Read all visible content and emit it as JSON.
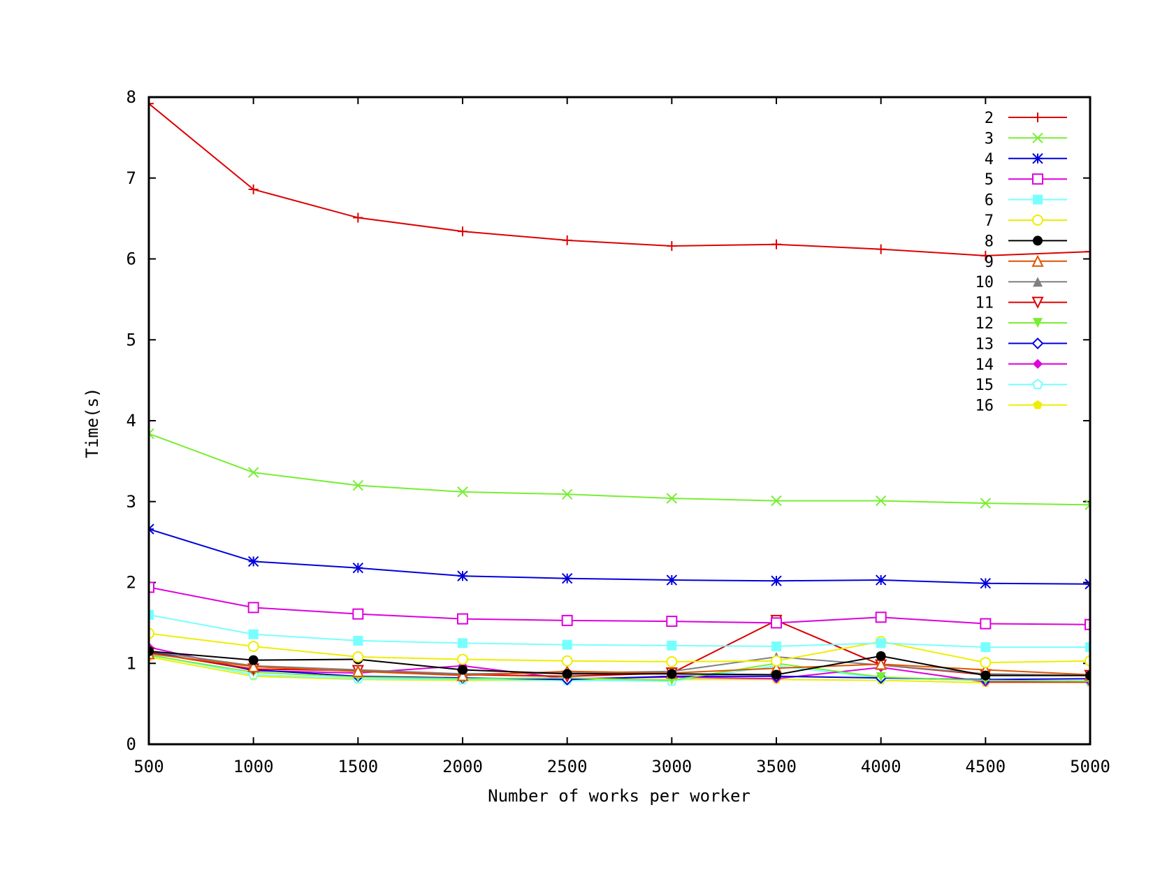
{
  "chart_data": {
    "type": "line",
    "title": "",
    "xlabel": "Number of works per worker",
    "ylabel": "Time(s)",
    "xlim": [
      500,
      5000
    ],
    "ylim": [
      0,
      8
    ],
    "xticks": [
      500,
      1000,
      1500,
      2000,
      2500,
      3000,
      3500,
      4000,
      4500,
      5000
    ],
    "yticks": [
      0,
      1,
      2,
      3,
      4,
      5,
      6,
      7,
      8
    ],
    "grid": false,
    "legend_position": "top-right",
    "x": [
      500,
      1000,
      1500,
      2000,
      2500,
      3000,
      3500,
      4000,
      4500,
      5000
    ],
    "series": [
      {
        "name": "2",
        "color": "#dd0000",
        "marker": "plus",
        "values": [
          7.92,
          6.86,
          6.51,
          6.34,
          6.23,
          6.16,
          6.18,
          6.12,
          6.04,
          6.09
        ]
      },
      {
        "name": "3",
        "color": "#77ee33",
        "marker": "cross",
        "values": [
          3.84,
          3.36,
          3.2,
          3.12,
          3.09,
          3.04,
          3.01,
          3.01,
          2.98,
          2.96
        ]
      },
      {
        "name": "4",
        "color": "#0000dd",
        "marker": "star",
        "values": [
          2.66,
          2.26,
          2.18,
          2.08,
          2.05,
          2.03,
          2.02,
          2.03,
          1.99,
          1.98
        ]
      },
      {
        "name": "5",
        "color": "#dd00dd",
        "marker": "square-open",
        "values": [
          1.94,
          1.69,
          1.61,
          1.55,
          1.53,
          1.52,
          1.5,
          1.57,
          1.49,
          1.48
        ]
      },
      {
        "name": "6",
        "color": "#77ffff",
        "marker": "square-filled",
        "values": [
          1.6,
          1.36,
          1.28,
          1.25,
          1.23,
          1.22,
          1.21,
          1.25,
          1.2,
          1.2
        ]
      },
      {
        "name": "7",
        "color": "#eeee00",
        "marker": "circle-open",
        "values": [
          1.37,
          1.21,
          1.08,
          1.05,
          1.03,
          1.02,
          1.03,
          1.27,
          1.01,
          1.03
        ]
      },
      {
        "name": "8",
        "color": "#000000",
        "marker": "circle-filled",
        "values": [
          1.15,
          1.04,
          1.05,
          0.92,
          0.87,
          0.87,
          0.86,
          1.09,
          0.85,
          0.85
        ]
      },
      {
        "name": "9",
        "color": "#dd5500",
        "marker": "triangle-open",
        "values": [
          1.12,
          0.96,
          0.9,
          0.85,
          0.9,
          0.88,
          0.94,
          0.99,
          0.92,
          0.86
        ]
      },
      {
        "name": "10",
        "color": "#808080",
        "marker": "triangle-filled",
        "values": [
          1.15,
          0.97,
          0.92,
          0.87,
          0.88,
          0.9,
          1.08,
          0.98,
          0.87,
          0.85
        ]
      },
      {
        "name": "11",
        "color": "#dd0000",
        "marker": "triangle-down-open",
        "values": [
          1.13,
          0.93,
          0.91,
          0.86,
          0.84,
          0.88,
          1.53,
          0.98,
          0.86,
          0.85
        ]
      },
      {
        "name": "12",
        "color": "#77ee33",
        "marker": "triangle-down-filled",
        "values": [
          1.1,
          0.89,
          0.83,
          0.81,
          0.82,
          0.79,
          1.0,
          0.83,
          0.79,
          0.78
        ]
      },
      {
        "name": "13",
        "color": "#0000dd",
        "marker": "diamond-open",
        "values": [
          1.14,
          0.92,
          0.84,
          0.82,
          0.8,
          0.84,
          0.84,
          0.82,
          0.8,
          0.81
        ]
      },
      {
        "name": "14",
        "color": "#dd00dd",
        "marker": "diamond-filled",
        "values": [
          1.2,
          0.91,
          0.88,
          0.97,
          0.81,
          0.83,
          0.81,
          0.95,
          0.77,
          0.77
        ]
      },
      {
        "name": "15",
        "color": "#77ffff",
        "marker": "pentagon-open",
        "values": [
          1.11,
          0.86,
          0.81,
          0.8,
          0.79,
          0.78,
          0.97,
          0.82,
          0.79,
          0.78
        ]
      },
      {
        "name": "16",
        "color": "#eeee00",
        "marker": "pentagon-filled",
        "values": [
          1.08,
          0.84,
          0.8,
          0.79,
          0.79,
          0.8,
          0.8,
          0.79,
          0.76,
          0.76
        ]
      }
    ]
  }
}
